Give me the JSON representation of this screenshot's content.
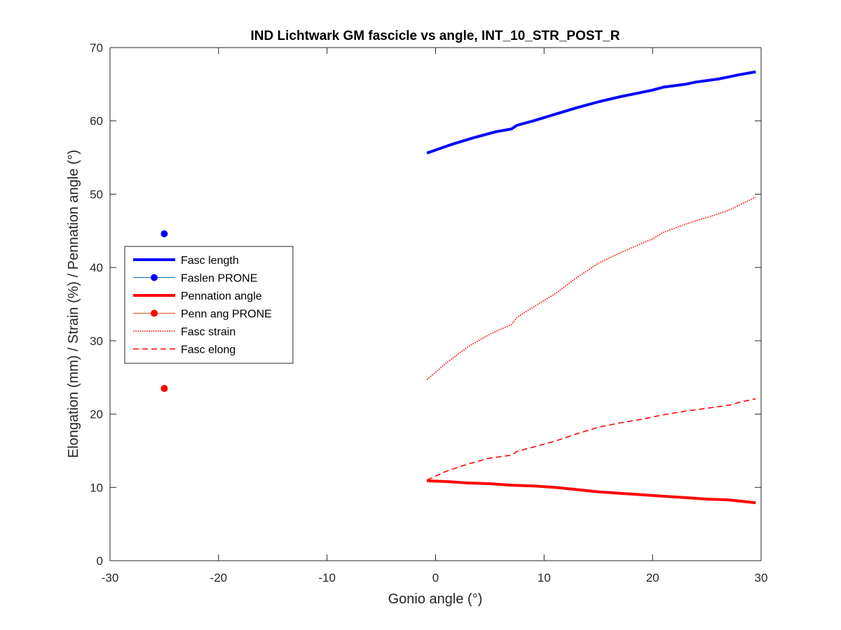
{
  "chart_data": {
    "type": "line",
    "title": "IND Lichtwark GM fascicle vs angle, INT_10_STR_POST_R",
    "xlabel": "Gonio angle (°)",
    "ylabel": "Elongation (mm) / Strain (%) / Pennation angle (°)",
    "xlim": [
      -30,
      30
    ],
    "ylim": [
      0,
      70
    ],
    "xticks": [
      "-30",
      "-20",
      "-10",
      "0",
      "10",
      "20",
      "30"
    ],
    "yticks": [
      "0",
      "10",
      "20",
      "30",
      "40",
      "50",
      "60",
      "70"
    ],
    "grid": false,
    "legend_position": "left-middle",
    "series": [
      {
        "name": "Fasc length",
        "color": "#0000ff",
        "style": "solid-thick",
        "x": [
          -0.8,
          1.5,
          3.5,
          5.5,
          7.0,
          7.5,
          9.0,
          11.0,
          13.0,
          15.0,
          17.0,
          19.0,
          20.0,
          21.0,
          23.0,
          24.0,
          25.0,
          26.0,
          27.0,
          28.0,
          29.5
        ],
        "y": [
          55.6,
          56.8,
          57.7,
          58.5,
          58.9,
          59.4,
          60.0,
          60.9,
          61.8,
          62.6,
          63.3,
          63.9,
          64.2,
          64.6,
          65.0,
          65.3,
          65.5,
          65.7,
          66.0,
          66.3,
          66.7
        ]
      },
      {
        "name": "Faslen PRONE",
        "color": "#0000ff",
        "style": "marker",
        "x": [
          -25
        ],
        "y": [
          44.6
        ]
      },
      {
        "name": "Pennation angle",
        "color": "#ff0000",
        "style": "solid-thick",
        "x": [
          -0.8,
          1.0,
          3.0,
          5.0,
          6.0,
          7.0,
          9.0,
          11.0,
          13.0,
          15.0,
          17.0,
          19.0,
          21.0,
          23.0,
          25.0,
          27.0,
          29.5
        ],
        "y": [
          10.9,
          10.8,
          10.6,
          10.5,
          10.4,
          10.3,
          10.2,
          10.0,
          9.7,
          9.4,
          9.2,
          9.0,
          8.8,
          8.6,
          8.4,
          8.3,
          7.9
        ]
      },
      {
        "name": "Penn ang PRONE",
        "color": "#ff0000",
        "style": "marker",
        "x": [
          -25
        ],
        "y": [
          23.5
        ]
      },
      {
        "name": "Fasc strain",
        "color": "#ff0000",
        "style": "dotted",
        "x": [
          -0.8,
          1.0,
          3.0,
          5.0,
          6.5,
          7.0,
          7.5,
          9.0,
          11.0,
          13.0,
          15.0,
          17.0,
          19.0,
          20.0,
          21.0,
          23.0,
          24.0,
          25.0,
          27.0,
          29.5
        ],
        "y": [
          24.7,
          27.0,
          29.2,
          30.9,
          31.9,
          32.2,
          33.2,
          34.6,
          36.4,
          38.6,
          40.6,
          42.0,
          43.3,
          43.9,
          44.8,
          45.9,
          46.4,
          46.8,
          47.8,
          49.6
        ]
      },
      {
        "name": "Fasc elong",
        "color": "#ff0000",
        "style": "dashed",
        "x": [
          -0.8,
          1.0,
          3.0,
          5.0,
          7.0,
          7.5,
          9.0,
          11.0,
          13.0,
          15.0,
          17.0,
          19.0,
          21.0,
          23.0,
          25.0,
          27.0,
          28.0,
          29.5
        ],
        "y": [
          11.0,
          12.2,
          13.2,
          14.0,
          14.4,
          14.9,
          15.5,
          16.3,
          17.3,
          18.2,
          18.8,
          19.3,
          19.9,
          20.4,
          20.8,
          21.2,
          21.6,
          22.1
        ]
      }
    ]
  }
}
